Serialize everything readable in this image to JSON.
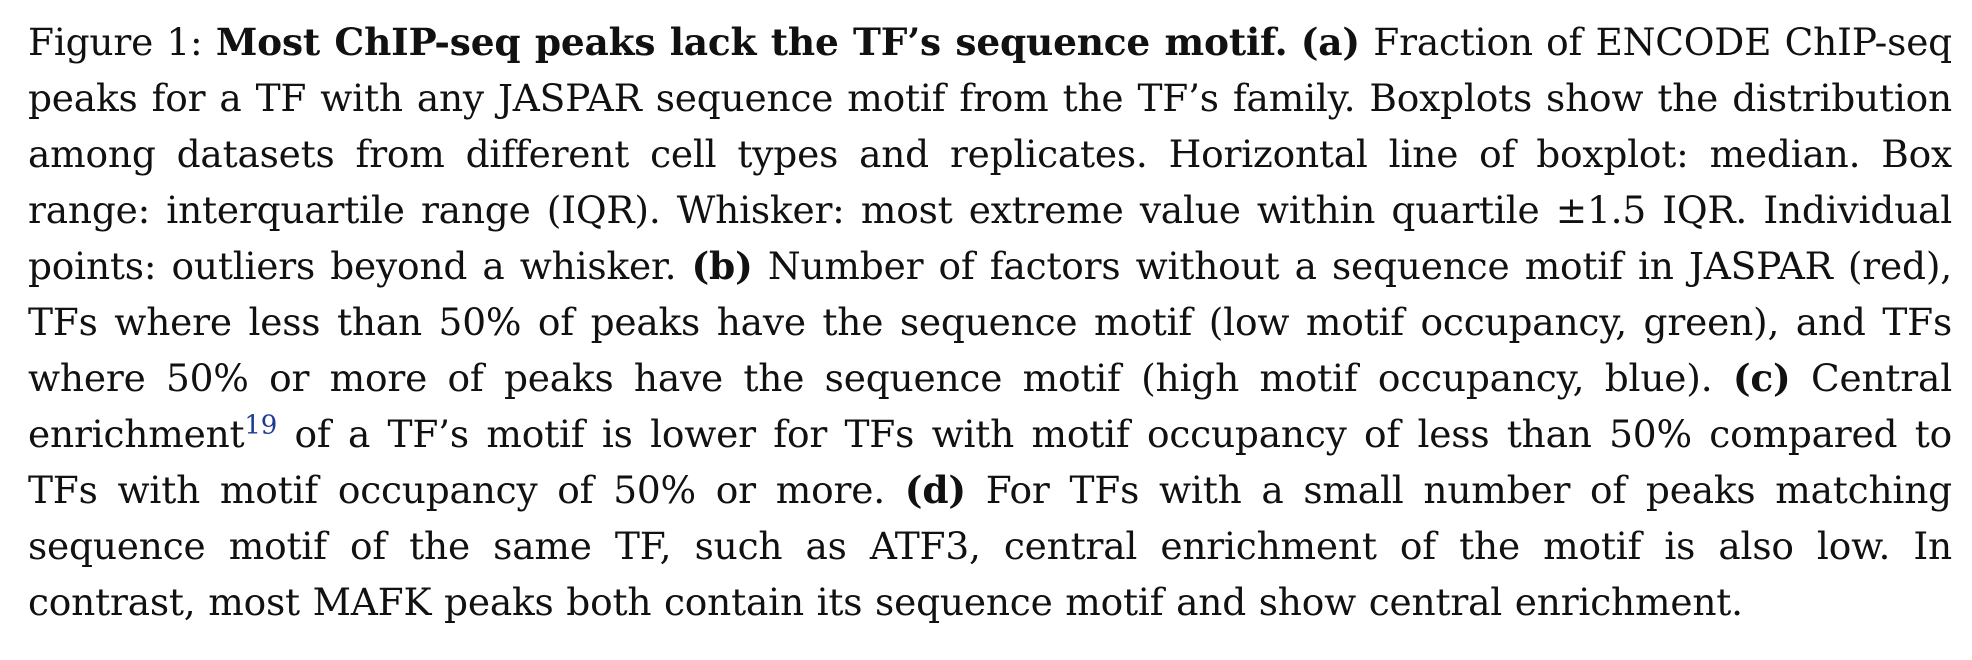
{
  "caption": {
    "label": "Figure 1:",
    "title": "Most ChIP-seq peaks lack the TF’s sequence motif.",
    "panel_a": {
      "tag": "(a)",
      "text": "Fraction of ENCODE ChIP-seq peaks for a TF with any JASPAR sequence motif from the TF’s family. Boxplots show the distribution among datasets from different cell types and replicates. Horizontal line of boxplot: median. Box range: interquartile range (IQR). Whisker: most extreme value within quartile ±1.5 IQR. Individual points: outliers beyond a whisker."
    },
    "panel_b": {
      "tag": "(b)",
      "text": "Number of factors without a sequence motif in JASPAR (red), TFs where less than 50% of peaks have the sequence motif (low motif occupancy, green), and TFs where 50% or more of peaks have the sequence motif (high motif occupancy, blue)."
    },
    "panel_c": {
      "tag": "(c)",
      "text_before": "Central enrichment",
      "citation": "19",
      "text_after": "of a TF’s motif is lower for TFs with motif occupancy of less than 50% compared to TFs with motif occupancy of 50% or more."
    },
    "panel_d": {
      "tag": "(d)",
      "text": "For TFs with a small number of peaks matching sequence motif of the same TF, such as ATF3, central enrichment of the motif is also low. In contrast, most MAFK peaks both contain its sequence motif and show central enrichment."
    }
  },
  "colors": {
    "text": "#111111",
    "citation_link": "#1f3a93",
    "background": "#ffffff"
  }
}
